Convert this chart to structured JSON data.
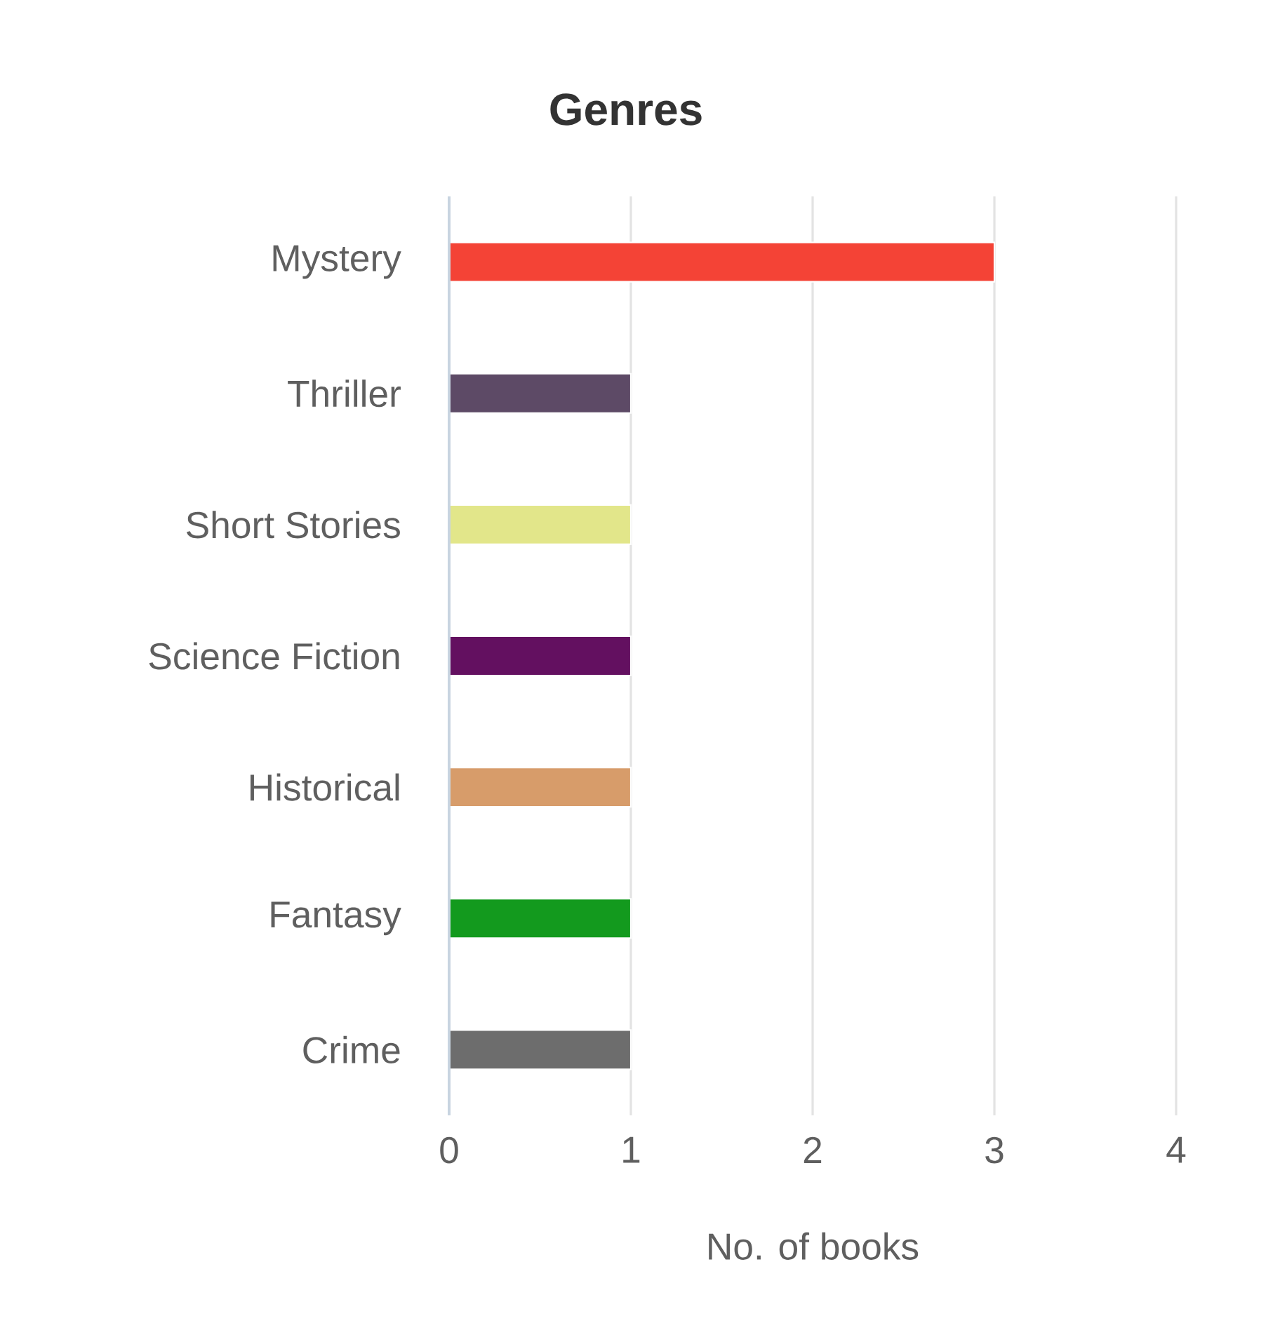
{
  "chart_data": {
    "type": "bar",
    "orientation": "horizontal",
    "title": "Genres",
    "xlabel": "No. of books",
    "categories": [
      "Mystery",
      "Thriller",
      "Short Stories",
      "Science Fiction",
      "Historical",
      "Fantasy",
      "Crime"
    ],
    "values": [
      3,
      1,
      1,
      1,
      1,
      1,
      1
    ],
    "colors": [
      "#f44336",
      "#5d4a66",
      "#e2e68a",
      "#631060",
      "#d79c6a",
      "#139a1e",
      "#6d6d6d"
    ],
    "xlim": [
      0,
      4
    ],
    "xticks": [
      0,
      1,
      2,
      3,
      4
    ],
    "grid": "x"
  }
}
